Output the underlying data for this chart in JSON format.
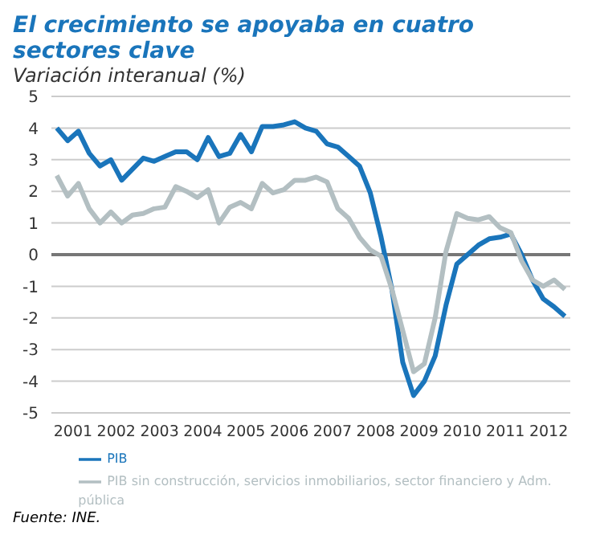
{
  "chart_data": {
    "type": "line",
    "title": "El crecimiento se apoyaba en cuatro sectores clave",
    "subtitle": "Variación interanual (%)",
    "annotations": [
      "Fuente: INE."
    ],
    "x": [
      2001.125,
      2001.375,
      2001.625,
      2001.875,
      2002.125,
      2002.375,
      2002.625,
      2002.875,
      2003.125,
      2003.375,
      2003.625,
      2003.875,
      2004.125,
      2004.375,
      2004.625,
      2004.875,
      2005.125,
      2005.375,
      2005.625,
      2005.875,
      2006.125,
      2006.375,
      2006.625,
      2006.875,
      2007.125,
      2007.375,
      2007.625,
      2007.875,
      2008.125,
      2008.375,
      2008.625,
      2008.875,
      2009.125,
      2009.375,
      2009.625,
      2009.875,
      2010.125,
      2010.375,
      2010.625,
      2010.875,
      2011.125,
      2011.375,
      2011.625,
      2011.875,
      2012.125,
      2012.375,
      2012.625,
      2012.875
    ],
    "series": [
      {
        "name": "PIB",
        "color": "#1a75bb",
        "values": [
          4.0,
          3.6,
          3.9,
          3.2,
          2.8,
          3.0,
          2.35,
          2.7,
          3.05,
          2.95,
          3.1,
          3.25,
          3.25,
          3.0,
          3.7,
          3.1,
          3.2,
          3.8,
          3.25,
          4.05,
          4.05,
          4.1,
          4.2,
          4.0,
          3.9,
          3.5,
          3.4,
          3.1,
          2.8,
          1.95,
          0.55,
          -1.1,
          -3.4,
          -4.45,
          -4.0,
          -3.2,
          -1.6,
          -0.3,
          0.0,
          0.3,
          0.5,
          0.55,
          0.65,
          0.0,
          -0.8,
          -1.4,
          -1.65,
          -1.95
        ]
      },
      {
        "name": "PIB sin construcción, servicios inmobiliarios, sector financiero y Adm. pública",
        "color": "#b3bfc2",
        "values": [
          2.5,
          1.85,
          2.25,
          1.45,
          1.0,
          1.35,
          1.0,
          1.25,
          1.3,
          1.45,
          1.5,
          2.15,
          2.0,
          1.8,
          2.05,
          1.0,
          1.5,
          1.65,
          1.45,
          2.25,
          1.95,
          2.05,
          2.35,
          2.35,
          2.45,
          2.3,
          1.45,
          1.15,
          0.55,
          0.15,
          -0.05,
          -1.1,
          -2.4,
          -3.7,
          -3.45,
          -2.0,
          0.1,
          1.3,
          1.15,
          1.1,
          1.2,
          0.85,
          0.7,
          -0.2,
          -0.8,
          -1.0,
          -0.8,
          -1.1
        ]
      }
    ],
    "xlim": [
      2001,
      2013
    ],
    "xticks": [
      {
        "value": 2001.5,
        "label": "2001"
      },
      {
        "value": 2002.5,
        "label": "2002"
      },
      {
        "value": 2003.5,
        "label": "2003"
      },
      {
        "value": 2004.5,
        "label": "2004"
      },
      {
        "value": 2005.5,
        "label": "2005"
      },
      {
        "value": 2006.5,
        "label": "2006"
      },
      {
        "value": 2007.5,
        "label": "2007"
      },
      {
        "value": 2008.5,
        "label": "2008"
      },
      {
        "value": 2009.5,
        "label": "2009"
      },
      {
        "value": 2010.5,
        "label": "2010"
      },
      {
        "value": 2011.5,
        "label": "2011"
      },
      {
        "value": 2012.5,
        "label": "2012"
      }
    ],
    "ylim": [
      -5,
      5
    ],
    "yticks": [
      -5,
      -4,
      -3,
      -2,
      -1,
      0,
      1,
      2,
      3,
      4,
      5
    ],
    "ref_lines": [
      {
        "axis": "y",
        "value": 0,
        "color": "#777777"
      }
    ],
    "grid": "y",
    "legend": "bottom",
    "marker": "none",
    "line_style": "solid"
  }
}
